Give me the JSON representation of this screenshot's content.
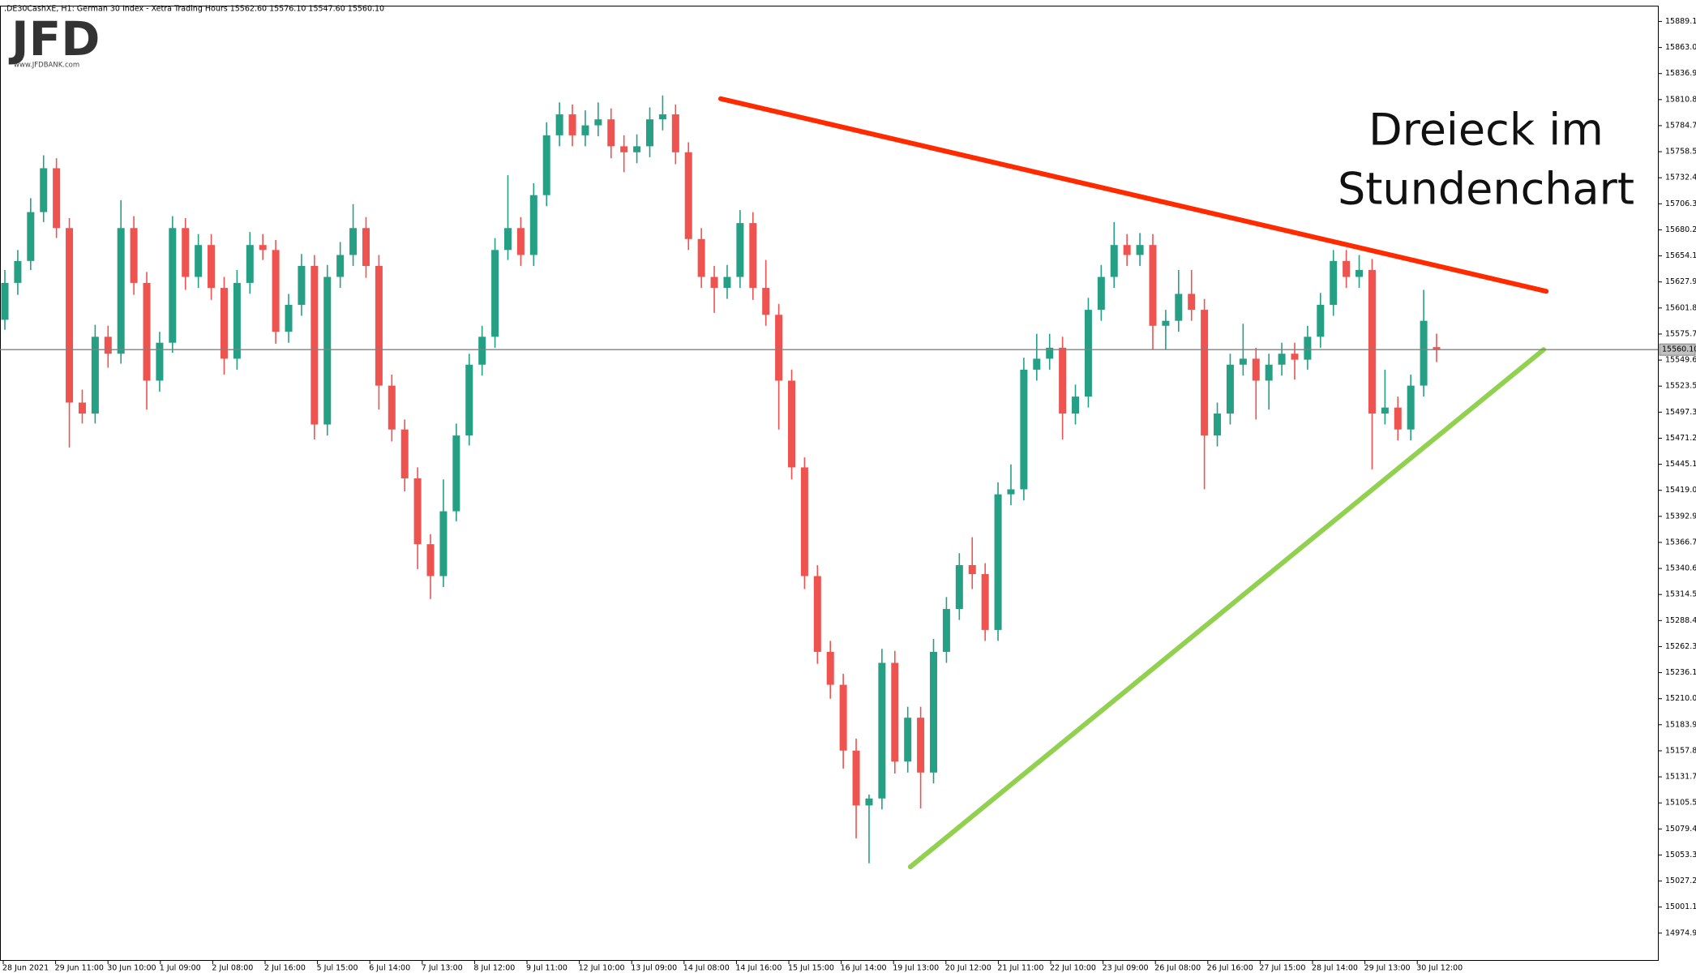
{
  "header": ".DE30CashXE, H1:  German 30 Index  - Xetra Trading Hours  15562.60 15576.10 15547.60 15560.10",
  "logo": {
    "brand": "JFD",
    "url": "www.JFDBANK.com"
  },
  "chart_data": {
    "type": "candlestick",
    "annotation": [
      "Dreieck im",
      "Stundenchart"
    ],
    "up_color": "#26a085",
    "down_color": "#ef5350",
    "ylim": [
      14948,
      15905
    ],
    "yticks": [
      15889.18,
      15863.06,
      15836.94,
      15810.82,
      {
        "value": 15784.7,
        "label": "15784.70"
      },
      15758.58,
      15732.46,
      15706.34,
      15680.22,
      {
        "value": 15654.1,
        "label": "15654.10"
      },
      15627.98,
      15601.86,
      15575.74,
      15549.62,
      {
        "value": 15523.5,
        "label": "15523.50"
      },
      15497.38,
      15471.26,
      15445.14,
      15419.02,
      {
        "value": 15392.9,
        "label": "15392.90"
      },
      15366.78,
      15340.66,
      15314.54,
      15288.42,
      {
        "value": 15262.3,
        "label": "15262.30"
      },
      15236.18,
      15210.06,
      15183.94,
      15157.82,
      {
        "value": 15131.7,
        "label": "15131.70"
      },
      15105.58,
      15079.46,
      15053.34,
      15027.22,
      {
        "value": 15001.1,
        "label": "15001.10"
      },
      14974.98
    ],
    "xticks": [
      "28 Jun 2021",
      "29 Jun 11:00",
      "30 Jun 10:00",
      "1 Jul 09:00",
      "2 Jul 08:00",
      "2 Jul 16:00",
      "5 Jul 15:00",
      "6 Jul 14:00",
      "7 Jul 13:00",
      "8 Jul 12:00",
      "9 Jul 11:00",
      "12 Jul 10:00",
      "13 Jul 09:00",
      "14 Jul 08:00",
      "14 Jul 16:00",
      "15 Jul 15:00",
      "16 Jul 14:00",
      "19 Jul 13:00",
      "20 Jul 12:00",
      "21 Jul 11:00",
      "22 Jul 10:00",
      "23 Jul 09:00",
      "26 Jul 08:00",
      "26 Jul 16:00",
      "27 Jul 15:00",
      "28 Jul 14:00",
      "29 Jul 13:00",
      "30 Jul 12:00"
    ],
    "current_price": {
      "value": 15560.1,
      "label": "15560.10",
      "color": "#808080"
    },
    "trendlines": [
      {
        "color": "#ff2a00",
        "values": [
          15811.7,
          15618.6
        ]
      },
      {
        "color": "#92d050",
        "values": [
          15041.4,
          15560.1
        ]
      }
    ],
    "candles": [
      [
        15590,
        15640,
        15580,
        15627
      ],
      [
        15627,
        15660,
        15615,
        15649
      ],
      [
        15649,
        15712,
        15640,
        15698
      ],
      [
        15698,
        15755,
        15688,
        15742
      ],
      [
        15742,
        15752,
        15672,
        15682
      ],
      [
        15682,
        15692,
        15462,
        15507
      ],
      [
        15507,
        15520,
        15486,
        15496
      ],
      [
        15496,
        15585,
        15486,
        15573
      ],
      [
        15573,
        15584,
        15542,
        15556
      ],
      [
        15556,
        15710,
        15546,
        15682
      ],
      [
        15682,
        15694,
        15615,
        15627
      ],
      [
        15627,
        15638,
        15500,
        15529
      ],
      [
        15529,
        15578,
        15518,
        15567
      ],
      [
        15567,
        15694,
        15557,
        15682
      ],
      [
        15682,
        15692,
        15620,
        15633
      ],
      [
        15633,
        15676,
        15622,
        15665
      ],
      [
        15665,
        15676,
        15610,
        15622
      ],
      [
        15622,
        15633,
        15535,
        15551
      ],
      [
        15551,
        15640,
        15540,
        15627
      ],
      [
        15627,
        15678,
        15616,
        15665
      ],
      [
        15665,
        15676,
        15650,
        15660
      ],
      [
        15660,
        15670,
        15566,
        15578
      ],
      [
        15578,
        15616,
        15567,
        15605
      ],
      [
        15605,
        15656,
        15594,
        15644
      ],
      [
        15644,
        15655,
        15470,
        15485
      ],
      [
        15485,
        15645,
        15474,
        15633
      ],
      [
        15633,
        15668,
        15622,
        15655
      ],
      [
        15655,
        15706,
        15644,
        15682
      ],
      [
        15682,
        15693,
        15632,
        15644
      ],
      [
        15644,
        15655,
        15500,
        15524
      ],
      [
        15524,
        15535,
        15468,
        15480
      ],
      [
        15480,
        15490,
        15418,
        15431
      ],
      [
        15431,
        15442,
        15340,
        15365
      ],
      [
        15365,
        15375,
        15310,
        15333
      ],
      [
        15333,
        15430,
        15322,
        15398
      ],
      [
        15398,
        15486,
        15388,
        15474
      ],
      [
        15474,
        15556,
        15464,
        15545
      ],
      [
        15545,
        15584,
        15534,
        15573
      ],
      [
        15573,
        15672,
        15562,
        15660
      ],
      [
        15660,
        15735,
        15650,
        15682
      ],
      [
        15682,
        15693,
        15644,
        15655
      ],
      [
        15655,
        15727,
        15644,
        15715
      ],
      [
        15715,
        15788,
        15704,
        15775
      ],
      [
        15775,
        15808,
        15764,
        15796
      ],
      [
        15796,
        15806,
        15764,
        15775
      ],
      [
        15775,
        15800,
        15764,
        15785
      ],
      [
        15785,
        15808,
        15774,
        15791
      ],
      [
        15791,
        15802,
        15752,
        15764
      ],
      [
        15764,
        15775,
        15738,
        15758
      ],
      [
        15758,
        15776,
        15747,
        15764
      ],
      [
        15764,
        15803,
        15753,
        15791
      ],
      [
        15791,
        15815,
        15780,
        15796
      ],
      [
        15796,
        15806,
        15746,
        15758
      ],
      [
        15758,
        15768,
        15660,
        15671
      ],
      [
        15671,
        15682,
        15622,
        15633
      ],
      [
        15633,
        15644,
        15597,
        15622
      ],
      [
        15622,
        15645,
        15611,
        15633
      ],
      [
        15633,
        15700,
        15622,
        15687
      ],
      [
        15687,
        15698,
        15610,
        15622
      ],
      [
        15622,
        15650,
        15584,
        15595
      ],
      [
        15595,
        15606,
        15480,
        15529
      ],
      [
        15529,
        15540,
        15430,
        15442
      ],
      [
        15442,
        15452,
        15320,
        15333
      ],
      [
        15333,
        15344,
        15245,
        15257
      ],
      [
        15257,
        15268,
        15210,
        15224
      ],
      [
        15224,
        15235,
        15140,
        15158
      ],
      [
        15158,
        15170,
        15070,
        15103
      ],
      [
        15103,
        15114,
        15045,
        15110
      ],
      [
        15110,
        15260,
        15099,
        15246
      ],
      [
        15246,
        15258,
        15135,
        15147
      ],
      [
        15147,
        15202,
        15136,
        15191
      ],
      [
        15191,
        15202,
        15100,
        15136
      ],
      [
        15136,
        15270,
        15125,
        15257
      ],
      [
        15257,
        15312,
        15246,
        15300
      ],
      [
        15300,
        15356,
        15289,
        15344
      ],
      [
        15344,
        15372,
        15320,
        15335
      ],
      [
        15335,
        15346,
        15268,
        15279
      ],
      [
        15279,
        15427,
        15268,
        15415
      ],
      [
        15415,
        15445,
        15404,
        15420
      ],
      [
        15420,
        15552,
        15409,
        15540
      ],
      [
        15540,
        15576,
        15529,
        15551
      ],
      [
        15551,
        15576,
        15540,
        15562
      ],
      [
        15562,
        15573,
        15470,
        15496
      ],
      [
        15496,
        15525,
        15485,
        15513
      ],
      [
        15513,
        15612,
        15502,
        15600
      ],
      [
        15600,
        15645,
        15589,
        15633
      ],
      [
        15633,
        15688,
        15622,
        15665
      ],
      [
        15665,
        15676,
        15644,
        15655
      ],
      [
        15655,
        15677,
        15644,
        15665
      ],
      [
        15665,
        15676,
        15560,
        15584
      ],
      [
        15584,
        15600,
        15560,
        15589
      ],
      [
        15589,
        15640,
        15578,
        15616
      ],
      [
        15616,
        15640,
        15589,
        15600
      ],
      [
        15600,
        15611,
        15420,
        15474
      ],
      [
        15474,
        15507,
        15463,
        15496
      ],
      [
        15496,
        15556,
        15485,
        15545
      ],
      [
        15545,
        15586,
        15534,
        15551
      ],
      [
        15551,
        15562,
        15490,
        15529
      ],
      [
        15529,
        15556,
        15500,
        15545
      ],
      [
        15545,
        15567,
        15534,
        15556
      ],
      [
        15556,
        15567,
        15530,
        15550
      ],
      [
        15550,
        15584,
        15540,
        15573
      ],
      [
        15573,
        15617,
        15562,
        15605
      ],
      [
        15605,
        15660,
        15594,
        15649
      ],
      [
        15649,
        15660,
        15622,
        15633
      ],
      [
        15633,
        15655,
        15622,
        15640
      ],
      [
        15640,
        15651,
        15440,
        15496
      ],
      [
        15496,
        15540,
        15485,
        15502
      ],
      [
        15502,
        15513,
        15469,
        15480
      ],
      [
        15480,
        15535,
        15469,
        15524
      ],
      [
        15524,
        15620,
        15513,
        15589
      ],
      [
        15562.6,
        15576.1,
        15547.6,
        15560.1
      ]
    ]
  }
}
